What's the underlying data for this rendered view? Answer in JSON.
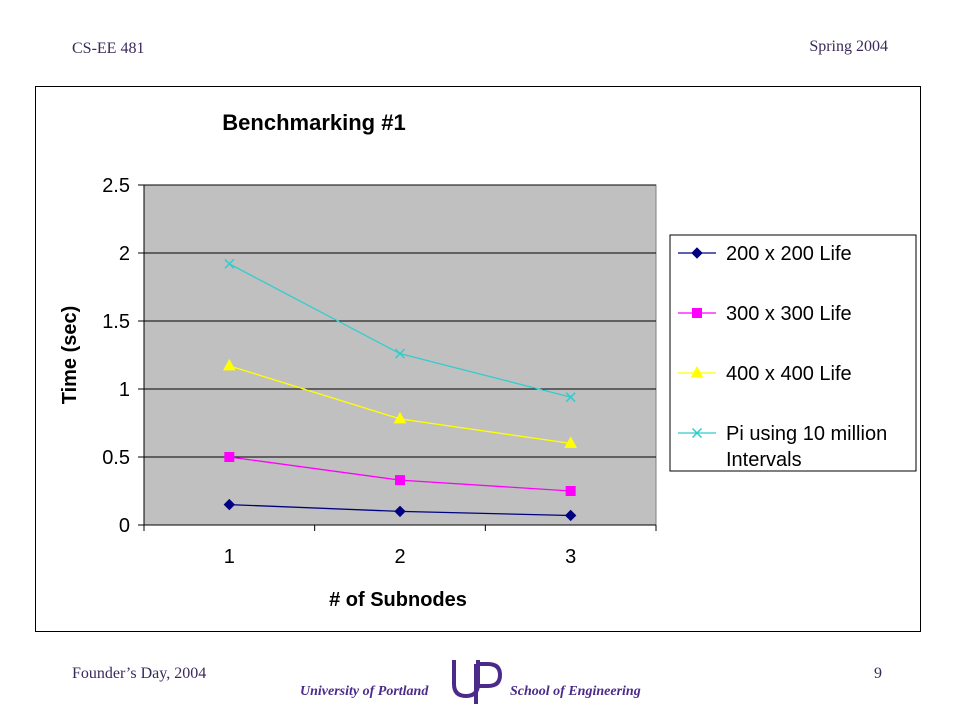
{
  "slide": {
    "course": "CS-EE 481",
    "term": "Spring 2004",
    "footer_left": "Founder’s Day, 2004",
    "page_number": "9",
    "university": "University of Portland",
    "school": "School of Engineering",
    "logo_icon": "up-monogram-logo"
  },
  "colors": {
    "plot_bg": "#c0c0c0",
    "series": [
      "#000080",
      "#ff00ff",
      "#ffff00",
      "#33cccc"
    ]
  },
  "chart_data": {
    "type": "line",
    "title": "Benchmarking #1",
    "xlabel": "# of Subnodes",
    "ylabel": "Time (sec)",
    "categories": [
      "1",
      "2",
      "3"
    ],
    "ylim": [
      0,
      2.5
    ],
    "yticks": [
      "0",
      "0.5",
      "1",
      "1.5",
      "2",
      "2.5"
    ],
    "grid": true,
    "legend_position": "right",
    "series": [
      {
        "name": "200 x 200 Life",
        "marker": "diamond",
        "values": [
          0.15,
          0.1,
          0.07
        ]
      },
      {
        "name": "300 x 300 Life",
        "marker": "square",
        "values": [
          0.5,
          0.33,
          0.25
        ]
      },
      {
        "name": "400 x 400 Life",
        "marker": "triangle",
        "values": [
          1.17,
          0.78,
          0.6
        ]
      },
      {
        "name": "Pi using 10 million Intervals",
        "legend_lines": [
          "Pi using 10 million",
          "Intervals"
        ],
        "marker": "x",
        "values": [
          1.92,
          1.26,
          0.94
        ]
      }
    ]
  }
}
